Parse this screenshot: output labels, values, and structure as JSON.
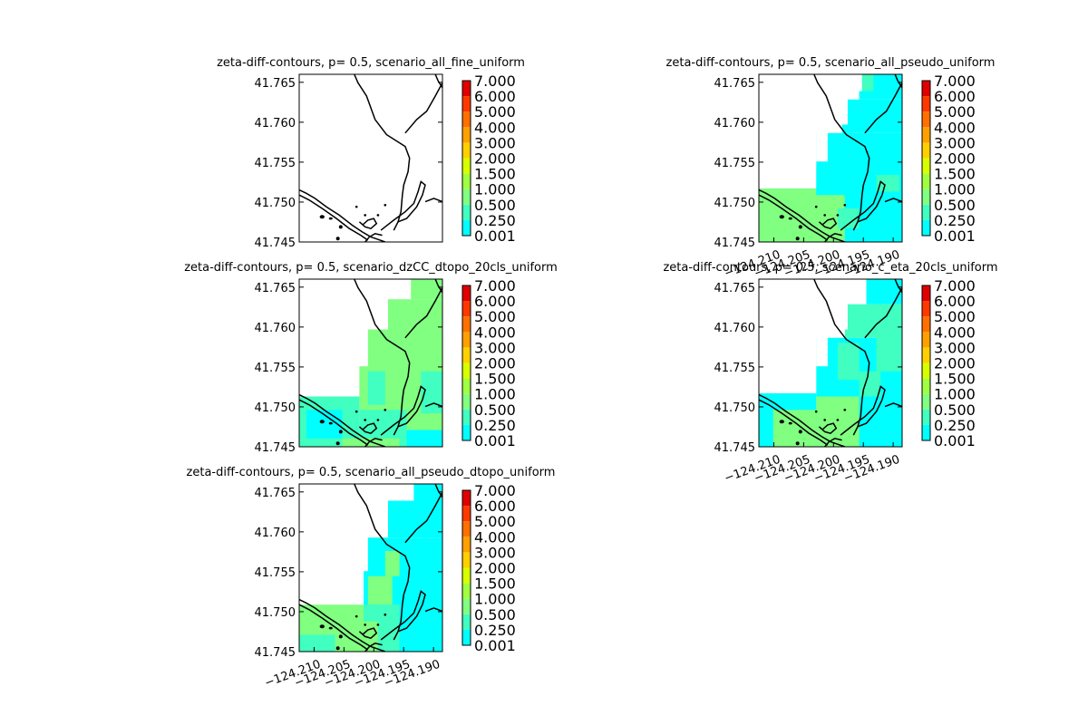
{
  "figure": {
    "colorbar_ticks": [
      "0.001",
      "0.250",
      "0.500",
      "1.000",
      "1.500",
      "2.000",
      "3.000",
      "4.000",
      "5.000",
      "6.000",
      "7.000"
    ],
    "colorbar_colors": [
      "#00ffff",
      "#40ffc0",
      "#80ff80",
      "#a0ff40",
      "#d8ff00",
      "#ffff00",
      "#ffd000",
      "#ffa000",
      "#ff7000",
      "#ff3800",
      "#e00000"
    ],
    "y_tick_labels": [
      "41.745",
      "41.750",
      "41.755",
      "41.760",
      "41.765"
    ],
    "x_tick_labels": [
      "−124.210",
      "−124.205",
      "−124.200",
      "−124.195",
      "−124.190"
    ]
  },
  "chart_data": [
    {
      "type": "heatmap",
      "title": "zeta-diff-contours, p= 0.5, scenario_all_fine_uniform",
      "xlabel": "",
      "ylabel": "",
      "ylim": [
        41.745,
        41.766
      ],
      "yticks": [
        41.745,
        41.75,
        41.755,
        41.76,
        41.765
      ],
      "x_tick_labels_shown": false,
      "levels": [
        0.001,
        0.25,
        0.5,
        1.0,
        1.5,
        2.0,
        3.0,
        4.0,
        5.0,
        6.0,
        7.0
      ],
      "fill": "none"
    },
    {
      "type": "heatmap",
      "title": "zeta-diff-contours, p= 0.5, scenario_all_pseudo_uniform",
      "xlabel": "",
      "ylabel": "",
      "ylim": [
        41.745,
        41.766
      ],
      "yticks": [
        41.745,
        41.75,
        41.755,
        41.76,
        41.765
      ],
      "x_tick_labels_shown": true,
      "xticks": [
        -124.21,
        -124.205,
        -124.2,
        -124.195,
        -124.19
      ],
      "levels": [
        0.001,
        0.25,
        0.5,
        1.0,
        1.5,
        2.0,
        3.0,
        4.0,
        5.0,
        6.0,
        7.0
      ],
      "fill": "mostly_low"
    },
    {
      "type": "heatmap",
      "title": "zeta-diff-contours, p= 0.5, scenario_dzCC_dtopo_20cls_uniform",
      "xlabel": "",
      "ylabel": "",
      "ylim": [
        41.745,
        41.766
      ],
      "yticks": [
        41.745,
        41.75,
        41.755,
        41.76,
        41.765
      ],
      "x_tick_labels_shown": false,
      "levels": [
        0.001,
        0.25,
        0.5,
        1.0,
        1.5,
        2.0,
        3.0,
        4.0,
        5.0,
        6.0,
        7.0
      ],
      "fill": "mostly_mid"
    },
    {
      "type": "heatmap",
      "title": "zeta-diff-contours, p= 0.5, scenario_c_eta_20cls_uniform",
      "xlabel": "",
      "ylabel": "",
      "ylim": [
        41.745,
        41.766
      ],
      "yticks": [
        41.745,
        41.75,
        41.755,
        41.76,
        41.765
      ],
      "x_tick_labels_shown": true,
      "xticks": [
        -124.21,
        -124.205,
        -124.2,
        -124.195,
        -124.19
      ],
      "levels": [
        0.001,
        0.25,
        0.5,
        1.0,
        1.5,
        2.0,
        3.0,
        4.0,
        5.0,
        6.0,
        7.0
      ],
      "fill": "mixed_low_mid"
    },
    {
      "type": "heatmap",
      "title": "zeta-diff-contours, p= 0.5, scenario_all_pseudo_dtopo_uniform",
      "xlabel": "",
      "ylabel": "",
      "ylim": [
        41.745,
        41.766
      ],
      "yticks": [
        41.745,
        41.75,
        41.755,
        41.76,
        41.765
      ],
      "x_tick_labels_shown": true,
      "xticks": [
        -124.21,
        -124.205,
        -124.2,
        -124.195,
        -124.19
      ],
      "levels": [
        0.001,
        0.25,
        0.5,
        1.0,
        1.5,
        2.0,
        3.0,
        4.0,
        5.0,
        6.0,
        7.0
      ],
      "fill": "mostly_low_mid_south"
    }
  ]
}
